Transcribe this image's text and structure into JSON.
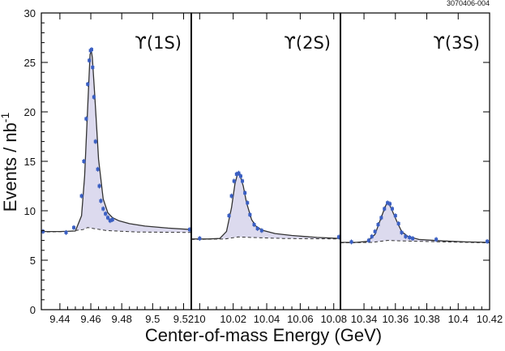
{
  "figure_id": "3070406-004",
  "chart_data": {
    "type": "scatter",
    "xlabel": "Center-of-mass Energy (GeV)",
    "ylabel": "Events / nb",
    "ylabel_superscript": "-1",
    "ylim": [
      0,
      30
    ],
    "yticks": [
      0,
      5,
      10,
      15,
      20,
      25,
      30
    ],
    "panels": [
      {
        "label": "ϒ(1S)",
        "xlim": [
          9.428,
          9.525
        ],
        "xticks": [
          9.44,
          9.46,
          9.48,
          9.5,
          9.52
        ],
        "xtick_labels": [
          "9.44",
          "9.46",
          "9.48",
          "9.5",
          "9.52"
        ],
        "peak": {
          "mass": 9.4603,
          "sigma_left": 0.0038,
          "sigma_right": 0.0042
        },
        "fit_line": {
          "x": [
            9.428,
            9.44,
            9.45,
            9.454,
            9.456,
            9.458,
            9.4595,
            9.4603,
            9.461,
            9.4625,
            9.465,
            9.468,
            9.471,
            9.474,
            9.478,
            9.485,
            9.495,
            9.51,
            9.525
          ],
          "y": [
            7.9,
            7.9,
            7.95,
            9.5,
            13.5,
            20.5,
            25.8,
            26.2,
            25.5,
            21.8,
            15.2,
            11.2,
            9.8,
            9.3,
            9.0,
            8.7,
            8.45,
            8.25,
            8.1
          ]
        },
        "background": {
          "x": [
            9.428,
            9.445,
            9.455,
            9.458,
            9.462,
            9.47,
            9.49,
            9.525
          ],
          "y": [
            7.85,
            7.9,
            8.1,
            8.3,
            8.2,
            8.0,
            7.85,
            7.8
          ]
        },
        "points": {
          "x": [
            9.428,
            9.444,
            9.449,
            9.454,
            9.4555,
            9.457,
            9.458,
            9.459,
            9.4598,
            9.4605,
            9.4612,
            9.462,
            9.463,
            9.4645,
            9.4655,
            9.4665,
            9.468,
            9.4695,
            9.471,
            9.4725,
            9.474,
            9.5252
          ],
          "y": [
            7.9,
            7.8,
            8.3,
            11.5,
            15.0,
            19.3,
            22.8,
            25.2,
            26.2,
            26.3,
            24.5,
            21.5,
            17.0,
            14.2,
            12.5,
            11.0,
            10.2,
            9.7,
            9.3,
            9.0,
            9.1,
            8.1
          ]
        }
      },
      {
        "label": "ϒ(2S)",
        "xlim": [
          9.995,
          10.084
        ],
        "xticks": [
          10.0,
          10.02,
          10.04,
          10.06,
          10.08
        ],
        "xtick_labels": [
          "10",
          "10.02",
          "10.04",
          "10.06",
          "10.08"
        ],
        "peak": {
          "mass": 10.0233,
          "sigma_left": 0.0035,
          "sigma_right": 0.0042
        },
        "fit_line": {
          "x": [
            9.995,
            10.005,
            10.012,
            10.016,
            10.019,
            10.021,
            10.0225,
            10.0233,
            10.024,
            10.026,
            10.028,
            10.031,
            10.034,
            10.038,
            10.045,
            10.055,
            10.07,
            10.084
          ],
          "y": [
            7.15,
            7.15,
            7.2,
            7.9,
            10.3,
            12.7,
            13.7,
            13.85,
            13.6,
            12.5,
            10.8,
            9.1,
            8.35,
            8.0,
            7.7,
            7.5,
            7.3,
            7.2
          ]
        },
        "background": {
          "x": [
            9.995,
            10.015,
            10.023,
            10.03,
            10.05,
            10.084
          ],
          "y": [
            7.1,
            7.15,
            7.35,
            7.3,
            7.2,
            7.15
          ]
        },
        "points": {
          "x": [
            10.0,
            10.0175,
            10.019,
            10.0205,
            10.022,
            10.0233,
            10.0245,
            10.0255,
            10.027,
            10.0285,
            10.03,
            10.0325,
            10.0345,
            10.037,
            10.0835
          ],
          "y": [
            7.2,
            9.5,
            11.5,
            13.0,
            13.7,
            13.8,
            13.5,
            13.0,
            11.8,
            10.8,
            9.6,
            8.6,
            8.2,
            8.0,
            7.35
          ]
        }
      },
      {
        "label": "ϒ(3S)",
        "xlim": [
          10.325,
          10.42
        ],
        "xticks": [
          10.34,
          10.36,
          10.38,
          10.4,
          10.42
        ],
        "xtick_labels": [
          "10.34",
          "10.36",
          "10.38",
          "10.4",
          "10.42"
        ],
        "peak": {
          "mass": 10.3552,
          "sigma_left": 0.0045,
          "sigma_right": 0.0055
        },
        "fit_line": {
          "x": [
            10.325,
            10.335,
            10.342,
            10.347,
            10.35,
            10.353,
            10.3545,
            10.3552,
            10.356,
            10.358,
            10.361,
            10.364,
            10.368,
            10.375,
            10.39,
            10.405,
            10.42
          ],
          "y": [
            6.8,
            6.8,
            6.9,
            7.6,
            8.9,
            10.2,
            10.75,
            10.8,
            10.7,
            10.0,
            8.9,
            7.9,
            7.4,
            7.1,
            6.95,
            6.85,
            6.8
          ]
        },
        "background": {
          "x": [
            10.325,
            10.345,
            10.355,
            10.365,
            10.39,
            10.42
          ],
          "y": [
            6.75,
            6.8,
            7.0,
            6.95,
            6.85,
            6.75
          ]
        },
        "points": {
          "x": [
            10.332,
            10.343,
            10.345,
            10.347,
            10.349,
            10.351,
            10.353,
            10.355,
            10.3565,
            10.358,
            10.36,
            10.362,
            10.364,
            10.3665,
            10.369,
            10.371,
            10.386,
            10.4185
          ],
          "y": [
            6.85,
            7.0,
            7.4,
            7.9,
            8.6,
            9.3,
            10.2,
            10.8,
            10.7,
            10.2,
            9.5,
            8.7,
            7.8,
            7.4,
            7.3,
            7.2,
            7.1,
            6.9
          ]
        }
      }
    ]
  }
}
